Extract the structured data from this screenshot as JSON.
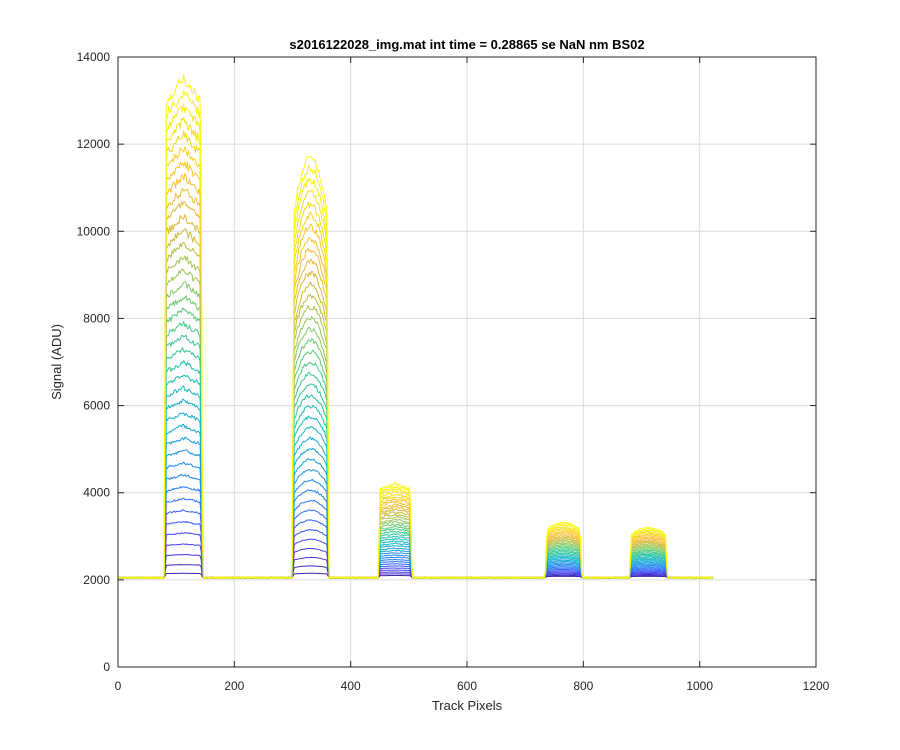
{
  "chart_data": {
    "type": "line",
    "title": "s2016122028_img.mat int time = 0.28865 se  NaN nm BS02",
    "xlabel": "Track Pixels",
    "ylabel": "Signal (ADU)",
    "xlim": [
      0,
      1200
    ],
    "ylim": [
      0,
      14000
    ],
    "xticks": [
      0,
      200,
      400,
      600,
      800,
      1000,
      1200
    ],
    "yticks": [
      0,
      2000,
      4000,
      6000,
      8000,
      10000,
      12000,
      14000
    ],
    "grid": true,
    "legend": "none",
    "n_series": 40,
    "colormap": [
      "#3e26a8",
      "#4743f0",
      "#2b6ffd",
      "#1d91e8",
      "#12afd2",
      "#1fc2aa",
      "#49cb83",
      "#92c95a",
      "#d1bb3a",
      "#fcc037",
      "#f4de1d",
      "#f9fb0e"
    ],
    "baseline": 2050,
    "x_max": 1024,
    "peaks": [
      {
        "x_start": 80,
        "x_end": 145,
        "peak": 13500,
        "min_peak": 2150,
        "shape": "flat-top",
        "noise": 240
      },
      {
        "x_start": 300,
        "x_end": 362,
        "peak": 11700,
        "min_peak": 2150,
        "shape": "rounded-top",
        "noise": 180
      },
      {
        "x_start": 448,
        "x_end": 505,
        "peak": 4200,
        "min_peak": 2100,
        "shape": "flat-top",
        "noise": 70
      },
      {
        "x_start": 735,
        "x_end": 797,
        "peak": 3320,
        "min_peak": 2080,
        "shape": "rounded-top",
        "noise": 25
      },
      {
        "x_start": 880,
        "x_end": 944,
        "peak": 3200,
        "min_peak": 2080,
        "shape": "rounded-top",
        "noise": 25
      }
    ]
  }
}
